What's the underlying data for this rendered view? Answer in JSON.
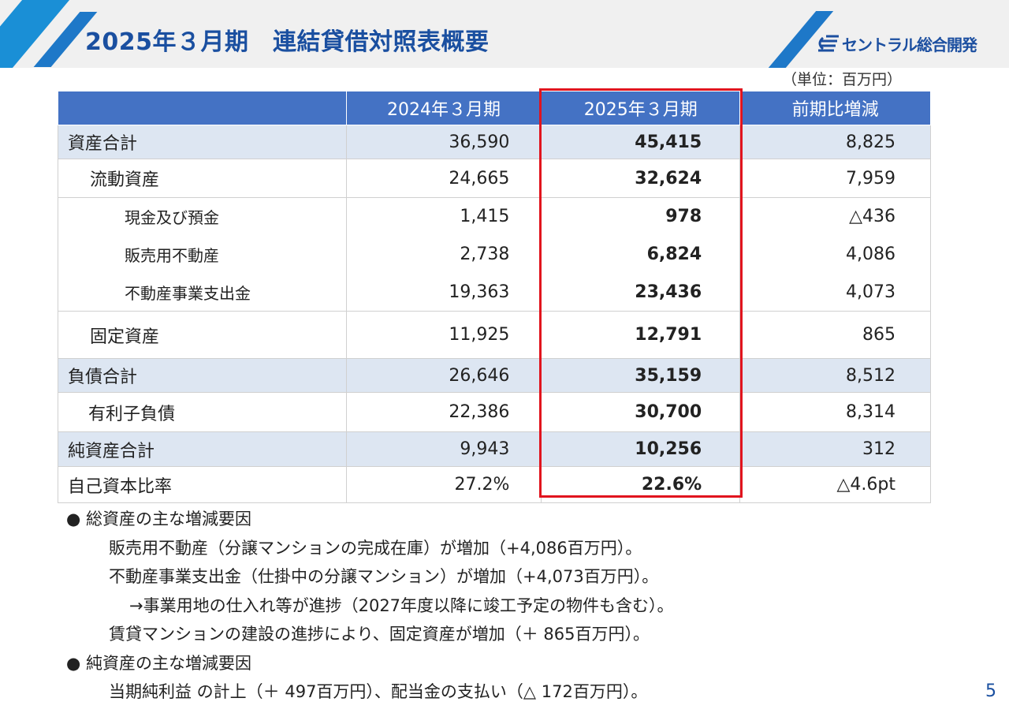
{
  "page_title": "2025年３月期　連結貸借対照表概要",
  "logo_text": "セントラル総合開発",
  "unit_note": "（単位：百万円）",
  "table": {
    "headers": [
      "",
      "2024年３月期",
      "2025年３月期",
      "前期比増減"
    ],
    "rows": [
      {
        "label": "資産合計",
        "prev": "36,590",
        "curr": "45,415",
        "diff": "8,825"
      },
      {
        "label": "流動資産",
        "prev": "24,665",
        "curr": "32,624",
        "diff": "7,959"
      },
      {
        "label": "現金及び預金",
        "prev": "1,415",
        "curr": "978",
        "diff": "△436"
      },
      {
        "label": "販売用不動産",
        "prev": "2,738",
        "curr": "6,824",
        "diff": "4,086"
      },
      {
        "label": "不動産事業支出金",
        "prev": "19,363",
        "curr": "23,436",
        "diff": "4,073"
      },
      {
        "label": "固定資産",
        "prev": "11,925",
        "curr": "12,791",
        "diff": "865"
      },
      {
        "label": "負債合計",
        "prev": "26,646",
        "curr": "35,159",
        "diff": "8,512"
      },
      {
        "label": "有利子負債",
        "prev": "22,386",
        "curr": "30,700",
        "diff": "8,314"
      },
      {
        "label": "純資産合計",
        "prev": "9,943",
        "curr": "10,256",
        "diff": "312"
      },
      {
        "label": "自己資本比率",
        "prev": "27.2%",
        "curr": "22.6%",
        "diff": "△4.6pt"
      }
    ]
  },
  "notes": {
    "assets_heading": "● 総資産の主な増減要因",
    "assets_lines": [
      "販売用不動産（分譲マンションの完成在庫）が増加（+4,086百万円）。",
      "不動産事業支出金（仕掛中の分譲マンション）が増加（+4,073百万円）。",
      "→事業用地の仕入れ等が進捗（2027年度以降に竣工予定の物件も含む）。",
      "賃貸マンションの建設の進捗により、固定資産が増加（＋ 865百万円）。"
    ],
    "equity_heading": "● 純資産の主な増減要因",
    "equity_lines": [
      "当期純利益 の計上（＋ 497百万円）、配当金の支払い（△ 172百万円）。"
    ]
  },
  "page_number": "5",
  "colors": {
    "header_fill": "#4472c4",
    "title": "#1a4fa0",
    "highlight": "#e1141e",
    "total_row": "#dde6f2"
  }
}
